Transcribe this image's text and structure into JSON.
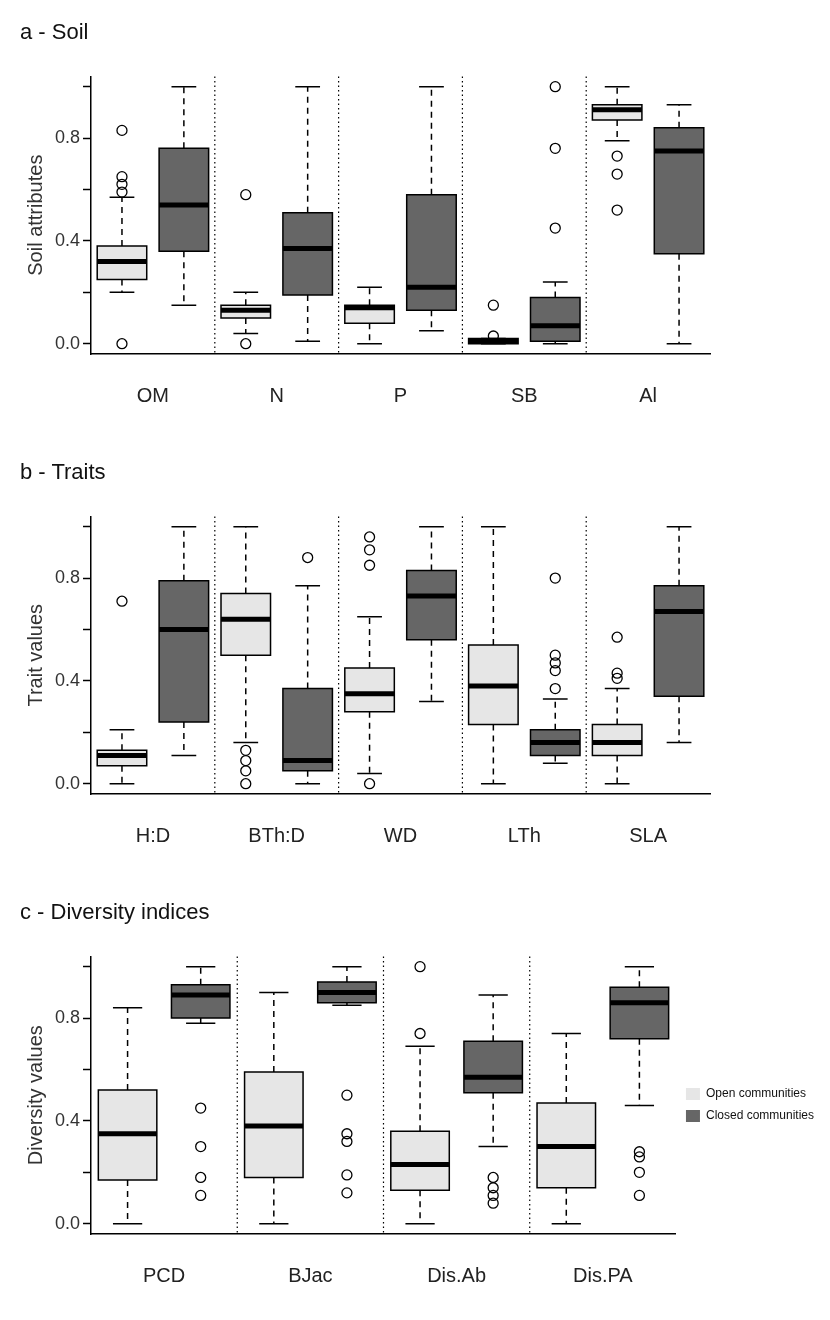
{
  "chart_data": [
    {
      "type": "box",
      "title": "a - Soil",
      "ylabel": "Soil attributes",
      "categories": [
        "OM",
        "N",
        "P",
        "SB",
        "Al"
      ],
      "ylim": [
        -0.04,
        1.04
      ],
      "yticks": [
        {
          "value": 0,
          "label": "0.0"
        },
        {
          "value": 0.2,
          "label": null
        },
        {
          "value": 0.4,
          "label": "0.4"
        },
        {
          "value": 0.6,
          "label": null
        },
        {
          "value": 0.8,
          "label": "0.8"
        },
        {
          "value": 1,
          "label": null
        }
      ],
      "series": [
        {
          "color": "#e6e6e6",
          "boxes": [
            {
              "low": 0.2,
              "q1": 0.25,
              "median": 0.32,
              "q3": 0.38,
              "high": 0.57,
              "outliers": [
                0.83,
                0.65,
                0.62,
                0.59,
                0.0
              ]
            },
            {
              "low": 0.04,
              "q1": 0.1,
              "median": 0.13,
              "q3": 0.15,
              "high": 0.2,
              "outliers": [
                0.58,
                0.0
              ]
            },
            {
              "low": 0.0,
              "q1": 0.08,
              "median": 0.14,
              "q3": 0.15,
              "high": 0.22
            },
            {
              "low": 0.0,
              "q1": 0.0,
              "median": 0.01,
              "q3": 0.02,
              "high": 0.02,
              "outliers": [
                0.15,
                0.03
              ]
            },
            {
              "low": 0.79,
              "q1": 0.87,
              "median": 0.91,
              "q3": 0.93,
              "high": 1.0,
              "outliers": [
                0.73,
                0.66,
                0.52
              ]
            }
          ]
        },
        {
          "color": "#666666",
          "boxes": [
            {
              "low": 0.15,
              "q1": 0.36,
              "median": 0.54,
              "q3": 0.76,
              "high": 1.0
            },
            {
              "low": 0.01,
              "q1": 0.19,
              "median": 0.37,
              "q3": 0.51,
              "high": 1.0
            },
            {
              "low": 0.05,
              "q1": 0.13,
              "median": 0.22,
              "q3": 0.58,
              "high": 1.0
            },
            {
              "low": 0.0,
              "q1": 0.01,
              "median": 0.07,
              "q3": 0.18,
              "high": 0.24,
              "outliers": [
                1.0,
                0.76,
                0.45
              ]
            },
            {
              "low": 0.0,
              "q1": 0.35,
              "median": 0.75,
              "q3": 0.84,
              "high": 0.93
            }
          ]
        }
      ]
    },
    {
      "type": "box",
      "title": "b - Traits",
      "ylabel": "Trait values",
      "categories": [
        "H:D",
        "BTh:D",
        "WD",
        "LTh",
        "SLA"
      ],
      "ylim": [
        -0.04,
        1.04
      ],
      "yticks": [
        {
          "value": 0,
          "label": "0.0"
        },
        {
          "value": 0.2,
          "label": null
        },
        {
          "value": 0.4,
          "label": "0.4"
        },
        {
          "value": 0.6,
          "label": null
        },
        {
          "value": 0.8,
          "label": "0.8"
        },
        {
          "value": 1,
          "label": null
        }
      ],
      "series": [
        {
          "color": "#e6e6e6",
          "boxes": [
            {
              "low": 0.0,
              "q1": 0.07,
              "median": 0.11,
              "q3": 0.13,
              "high": 0.21,
              "outliers": [
                0.71
              ]
            },
            {
              "low": 0.16,
              "q1": 0.5,
              "median": 0.64,
              "q3": 0.74,
              "high": 1.0,
              "outliers": [
                0.13,
                0.09,
                0.05,
                0.0
              ]
            },
            {
              "low": 0.04,
              "q1": 0.28,
              "median": 0.35,
              "q3": 0.45,
              "high": 0.65,
              "outliers": [
                0.96,
                0.91,
                0.85,
                0.0
              ]
            },
            {
              "low": 0.0,
              "q1": 0.23,
              "median": 0.38,
              "q3": 0.54,
              "high": 1.0
            },
            {
              "low": 0.0,
              "q1": 0.11,
              "median": 0.16,
              "q3": 0.23,
              "high": 0.37,
              "outliers": [
                0.57,
                0.43,
                0.41
              ]
            }
          ]
        },
        {
          "color": "#666666",
          "boxes": [
            {
              "low": 0.11,
              "q1": 0.24,
              "median": 0.6,
              "q3": 0.79,
              "high": 1.0
            },
            {
              "low": 0.0,
              "q1": 0.05,
              "median": 0.09,
              "q3": 0.37,
              "high": 0.77,
              "outliers": [
                0.88
              ]
            },
            {
              "low": 0.32,
              "q1": 0.56,
              "median": 0.73,
              "q3": 0.83,
              "high": 1.0
            },
            {
              "low": 0.08,
              "q1": 0.11,
              "median": 0.16,
              "q3": 0.21,
              "high": 0.33,
              "outliers": [
                0.8,
                0.5,
                0.47,
                0.44,
                0.37
              ]
            },
            {
              "low": 0.16,
              "q1": 0.34,
              "median": 0.67,
              "q3": 0.77,
              "high": 1.0
            }
          ]
        }
      ]
    },
    {
      "type": "box",
      "title": "c - Diversity indices",
      "ylabel": "Diversity values",
      "categories": [
        "PCD",
        "BJac",
        "Dis.Ab",
        "Dis.PA"
      ],
      "ylim": [
        -0.04,
        1.04
      ],
      "yticks": [
        {
          "value": 0,
          "label": "0.0"
        },
        {
          "value": 0.2,
          "label": null
        },
        {
          "value": 0.4,
          "label": "0.4"
        },
        {
          "value": 0.6,
          "label": null
        },
        {
          "value": 0.8,
          "label": "0.8"
        },
        {
          "value": 1,
          "label": null
        }
      ],
      "legend": "right",
      "series": [
        {
          "name": "Open communities",
          "color": "#e6e6e6",
          "boxes": [
            {
              "low": 0.0,
              "q1": 0.17,
              "median": 0.35,
              "q3": 0.52,
              "high": 0.84
            },
            {
              "low": 0.0,
              "q1": 0.18,
              "median": 0.38,
              "q3": 0.59,
              "high": 0.9
            },
            {
              "low": 0.0,
              "q1": 0.13,
              "median": 0.23,
              "q3": 0.36,
              "high": 0.69,
              "outliers": [
                1.0,
                0.74
              ]
            },
            {
              "low": 0.0,
              "q1": 0.14,
              "median": 0.3,
              "q3": 0.47,
              "high": 0.74
            }
          ]
        },
        {
          "name": "Closed communities",
          "color": "#666666",
          "boxes": [
            {
              "low": 0.78,
              "q1": 0.8,
              "median": 0.89,
              "q3": 0.93,
              "high": 1.0,
              "outliers": [
                0.45,
                0.3,
                0.18,
                0.11
              ]
            },
            {
              "low": 0.85,
              "q1": 0.86,
              "median": 0.9,
              "q3": 0.94,
              "high": 1.0,
              "outliers": [
                0.5,
                0.35,
                0.32,
                0.19,
                0.12
              ]
            },
            {
              "low": 0.3,
              "q1": 0.51,
              "median": 0.57,
              "q3": 0.71,
              "high": 0.89,
              "outliers": [
                0.18,
                0.14,
                0.11,
                0.08
              ]
            },
            {
              "low": 0.46,
              "q1": 0.72,
              "median": 0.86,
              "q3": 0.92,
              "high": 1.0,
              "outliers": [
                0.28,
                0.26,
                0.2,
                0.11
              ]
            }
          ]
        }
      ]
    }
  ]
}
